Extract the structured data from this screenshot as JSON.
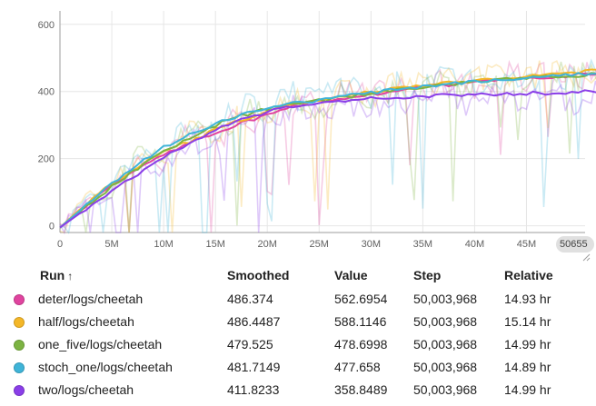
{
  "step_badge": "50655",
  "table": {
    "headers": {
      "run": "Run",
      "sort_arrow": "↑",
      "smoothed": "Smoothed",
      "value": "Value",
      "step": "Step",
      "relative": "Relative"
    },
    "rows": [
      {
        "color": "#e0449f",
        "run": "deter/logs/cheetah",
        "smoothed": "486.374",
        "value": "562.6954",
        "step": "50,003,968",
        "relative": "14.93 hr"
      },
      {
        "color": "#f4b728",
        "run": "half/logs/cheetah",
        "smoothed": "486.4487",
        "value": "588.1146",
        "step": "50,003,968",
        "relative": "15.14 hr"
      },
      {
        "color": "#7cb342",
        "run": "one_five/logs/cheetah",
        "smoothed": "479.525",
        "value": "478.6998",
        "step": "50,003,968",
        "relative": "14.99 hr"
      },
      {
        "color": "#3fb4d8",
        "run": "stoch_one/logs/cheetah",
        "smoothed": "481.7149",
        "value": "477.658",
        "step": "50,003,968",
        "relative": "14.89 hr"
      },
      {
        "color": "#8a3ee8",
        "run": "two/logs/cheetah",
        "smoothed": "411.8233",
        "value": "358.8489",
        "step": "50,003,968",
        "relative": "14.99 hr"
      }
    ]
  },
  "chart_data": {
    "type": "line",
    "x_ticks": [
      "0",
      "5M",
      "10M",
      "15M",
      "20M",
      "25M",
      "30M",
      "35M",
      "40M",
      "45M"
    ],
    "y_ticks": [
      "0",
      "200",
      "400",
      "600"
    ],
    "xlim": [
      0,
      50655000
    ],
    "ylim": [
      -20,
      640
    ],
    "grid": true,
    "x_step": 2500000,
    "series": [
      {
        "name": "deter/logs/cheetah",
        "color": "#e0449f",
        "smoothed": [
          -5,
          60,
          120,
          170,
          215,
          245,
          275,
          305,
          330,
          355,
          370,
          382,
          392,
          402,
          412,
          420,
          428,
          434,
          440,
          444,
          450,
          456,
          462,
          468,
          475,
          480,
          484,
          487,
          488,
          486,
          486
        ],
        "raw": [
          -5,
          80,
          110,
          200,
          190,
          280,
          250,
          330,
          310,
          370,
          360,
          400,
          380,
          420,
          400,
          430,
          420,
          450,
          430,
          460,
          440,
          470,
          450,
          480,
          470,
          500,
          470,
          520,
          480,
          530,
          562.6954
        ]
      },
      {
        "name": "half/logs/cheetah",
        "color": "#f4b728",
        "smoothed": [
          -5,
          65,
          125,
          175,
          220,
          250,
          285,
          315,
          340,
          362,
          375,
          388,
          398,
          408,
          418,
          425,
          432,
          440,
          446,
          452,
          458,
          464,
          470,
          476,
          482,
          488,
          492,
          494,
          492,
          490,
          486.4487
        ],
        "raw": [
          -5,
          90,
          120,
          210,
          200,
          290,
          260,
          340,
          320,
          380,
          370,
          410,
          390,
          430,
          410,
          440,
          430,
          460,
          440,
          470,
          450,
          480,
          460,
          490,
          480,
          520,
          480,
          540,
          490,
          560,
          588.1146
        ]
      },
      {
        "name": "one_five/logs/cheetah",
        "color": "#7cb342",
        "smoothed": [
          -5,
          55,
          118,
          172,
          225,
          260,
          300,
          328,
          348,
          362,
          372,
          384,
          394,
          404,
          414,
          422,
          428,
          435,
          440,
          444,
          448,
          452,
          456,
          462,
          468,
          474,
          478,
          462,
          472,
          480,
          479.525
        ],
        "raw": [
          -5,
          70,
          100,
          220,
          200,
          300,
          270,
          350,
          330,
          380,
          360,
          400,
          380,
          420,
          400,
          430,
          410,
          450,
          430,
          460,
          440,
          470,
          440,
          480,
          460,
          490,
          460,
          500,
          470,
          490,
          478.6998
        ]
      },
      {
        "name": "stoch_one/logs/cheetah",
        "color": "#3fb4d8",
        "smoothed": [
          -5,
          60,
          125,
          185,
          235,
          270,
          305,
          332,
          350,
          364,
          374,
          386,
          396,
          406,
          414,
          422,
          428,
          434,
          440,
          446,
          452,
          458,
          464,
          470,
          476,
          482,
          486,
          488,
          486,
          484,
          481.7149
        ],
        "raw": [
          -5,
          85,
          115,
          230,
          210,
          310,
          280,
          360,
          340,
          390,
          370,
          410,
          390,
          430,
          410,
          440,
          420,
          450,
          430,
          460,
          440,
          470,
          450,
          480,
          460,
          500,
          470,
          510,
          480,
          500,
          477.658
        ]
      },
      {
        "name": "two/logs/cheetah",
        "color": "#8a3ee8",
        "smoothed": [
          -5,
          50,
          105,
          155,
          205,
          245,
          285,
          318,
          340,
          355,
          365,
          372,
          378,
          382,
          386,
          388,
          390,
          392,
          394,
          396,
          398,
          400,
          401,
          402,
          403,
          404,
          405,
          406,
          408,
          410,
          411.8233
        ],
        "raw": [
          -5,
          60,
          90,
          180,
          170,
          260,
          240,
          320,
          300,
          360,
          340,
          370,
          350,
          380,
          360,
          390,
          360,
          390,
          370,
          400,
          370,
          400,
          380,
          410,
          380,
          410,
          380,
          410,
          390,
          400,
          358.8489
        ]
      }
    ]
  }
}
